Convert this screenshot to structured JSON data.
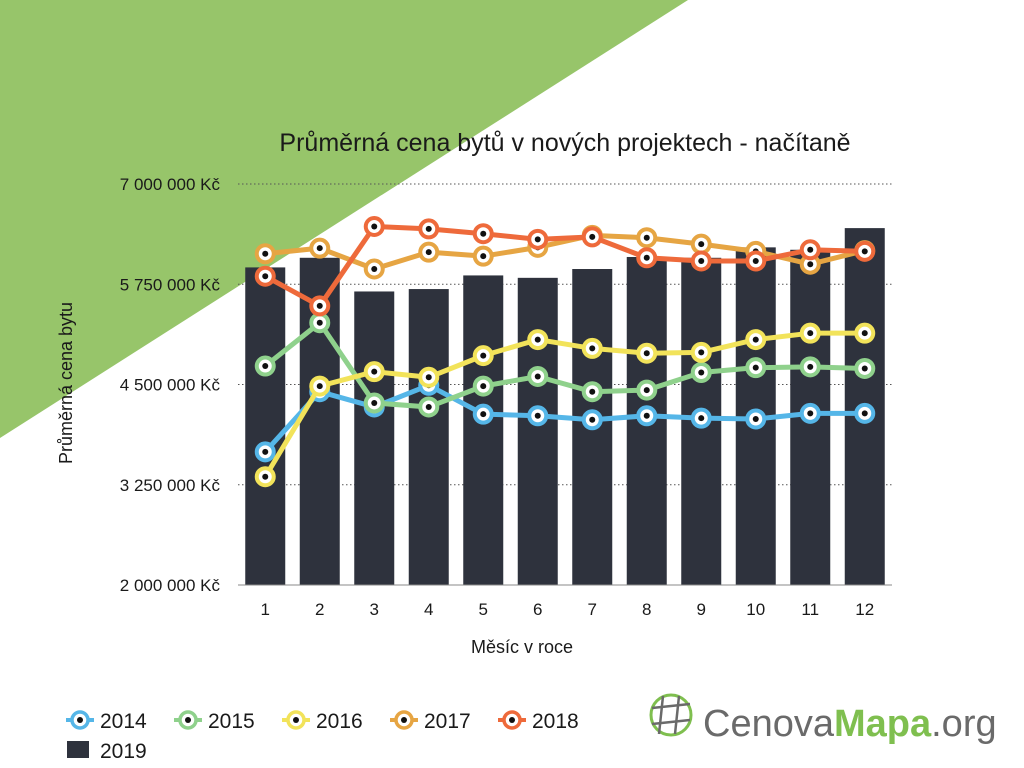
{
  "chart_data": {
    "type": "line",
    "title": "Průměrná cena bytů v nových projektech - načítaně",
    "xlabel": "Měsíc v roce",
    "ylabel": "Průměrná cena bytu",
    "x": [
      1,
      2,
      3,
      4,
      5,
      6,
      7,
      8,
      9,
      10,
      11,
      12
    ],
    "x_tick_labels": [
      "1",
      "2",
      "3",
      "4",
      "5",
      "6",
      "7",
      "8",
      "9",
      "10",
      "11",
      "12"
    ],
    "ylim": [
      2000000,
      7000000
    ],
    "y_ticks": [
      2000000,
      3250000,
      4500000,
      5750000,
      7000000
    ],
    "y_tick_labels": [
      "2 000 000 Kč",
      "3 250 000 Kč",
      "4 500 000 Kč",
      "5 750 000 Kč",
      "7 000 000 Kč"
    ],
    "grid": "horizontal-dotted",
    "legend_position": "bottom-left",
    "bars": {
      "name": "2019",
      "color": "#2e323d",
      "values": [
        5960000,
        6080000,
        5660000,
        5690000,
        5860000,
        5830000,
        5940000,
        6090000,
        6080000,
        6210000,
        6180000,
        6450000
      ]
    },
    "series": [
      {
        "name": "2014",
        "color": "#55b6e8",
        "values": [
          3660000,
          4410000,
          4220000,
          4490000,
          4130000,
          4110000,
          4060000,
          4110000,
          4080000,
          4070000,
          4140000,
          4140000
        ]
      },
      {
        "name": "2015",
        "color": "#8fd18c",
        "values": [
          4730000,
          5270000,
          4270000,
          4220000,
          4480000,
          4600000,
          4410000,
          4430000,
          4650000,
          4710000,
          4720000,
          4700000
        ]
      },
      {
        "name": "2016",
        "color": "#f2e35a",
        "values": [
          3350000,
          4480000,
          4660000,
          4590000,
          4860000,
          5060000,
          4950000,
          4890000,
          4900000,
          5060000,
          5140000,
          5140000
        ]
      },
      {
        "name": "2017",
        "color": "#e6a543",
        "values": [
          6130000,
          6200000,
          5940000,
          6150000,
          6100000,
          6210000,
          6360000,
          6330000,
          6250000,
          6160000,
          6000000,
          6170000
        ]
      },
      {
        "name": "2018",
        "color": "#ee6a3b",
        "values": [
          5850000,
          5480000,
          6470000,
          6440000,
          6380000,
          6310000,
          6340000,
          6080000,
          6040000,
          6040000,
          6180000,
          6160000
        ]
      }
    ]
  },
  "logo": {
    "cenova": "Cenova",
    "mapa": "Mapa",
    "org": ".org"
  },
  "decor": {
    "background_triangle_color": "#97c56a"
  }
}
